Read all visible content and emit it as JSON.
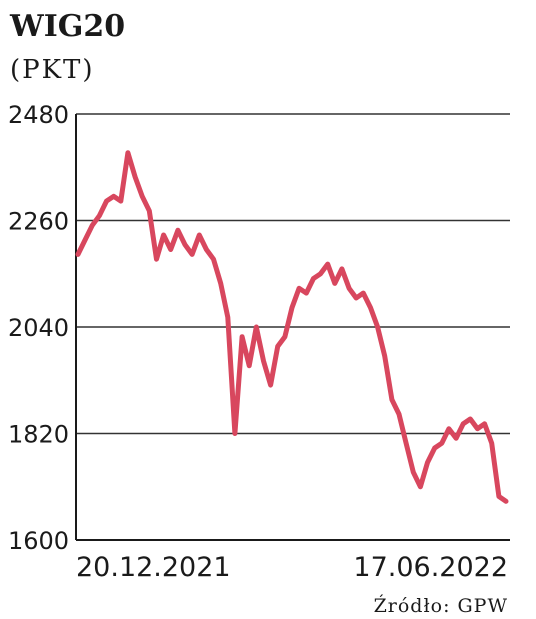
{
  "chart_data": {
    "type": "line",
    "title": "WIG20",
    "subtitle": "(PKT)",
    "xlabel": "",
    "ylabel": "",
    "ylim": [
      1600,
      2480
    ],
    "yticks": [
      1600,
      1820,
      2040,
      2260,
      2480
    ],
    "ytick_labels": [
      "1600",
      "1820",
      "2040",
      "2260",
      "2480"
    ],
    "x_tick_labels": [
      "20.12.2021",
      "17.06.2022"
    ],
    "grid": true,
    "source": "Źródło: GPW",
    "line_color": "#d8475e",
    "series": [
      {
        "x": [
          0,
          3,
          6,
          9,
          12,
          15,
          18,
          21,
          24,
          27,
          30,
          33,
          36,
          39,
          42,
          45,
          48,
          51,
          54,
          57,
          60,
          63,
          66,
          69,
          72,
          75,
          78,
          81,
          84,
          87,
          90,
          93,
          96,
          99,
          102,
          105,
          108,
          111,
          114,
          117,
          120,
          123,
          126,
          129,
          132,
          135,
          138,
          141,
          144,
          147,
          150,
          153,
          156,
          159,
          162,
          165,
          168,
          171,
          174,
          177,
          180
        ],
        "values": [
          2190,
          2220,
          2250,
          2270,
          2300,
          2310,
          2300,
          2400,
          2350,
          2310,
          2280,
          2180,
          2230,
          2200,
          2240,
          2210,
          2190,
          2230,
          2200,
          2180,
          2130,
          2060,
          1820,
          2020,
          1960,
          2040,
          1970,
          1920,
          2000,
          2020,
          2080,
          2120,
          2110,
          2140,
          2150,
          2170,
          2130,
          2160,
          2120,
          2100,
          2110,
          2080,
          2040,
          1980,
          1890,
          1860,
          1800,
          1740,
          1710,
          1760,
          1790,
          1800,
          1830,
          1810,
          1840,
          1850,
          1830,
          1840,
          1800,
          1690,
          1680
        ]
      }
    ]
  }
}
